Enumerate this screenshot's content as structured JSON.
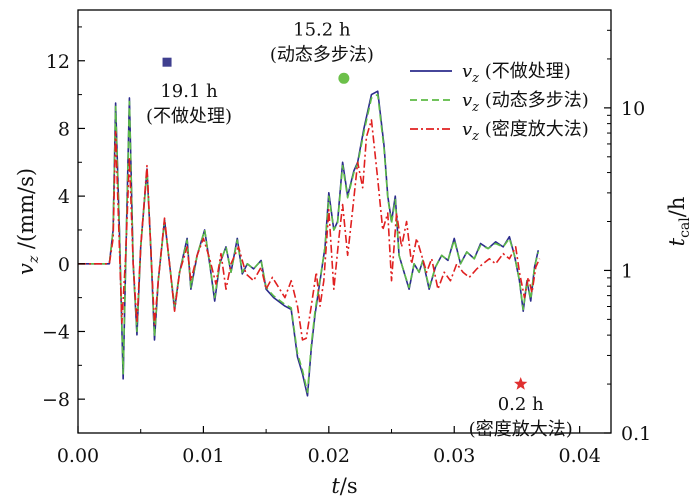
{
  "chart_data": {
    "type": "line",
    "x_axis": {
      "label": "t/s",
      "range": [
        0,
        0.0425
      ],
      "ticks": [
        0,
        0.01,
        0.02,
        0.03,
        0.04
      ],
      "tick_labels": [
        "0.00",
        "0.01",
        "0.02",
        "0.03",
        "0.04"
      ]
    },
    "y_axis_left": {
      "label": "vz /(mm/s)",
      "range": [
        -10,
        15
      ],
      "ticks": [
        -8,
        -4,
        0,
        4,
        8,
        12
      ],
      "tick_labels": [
        "−8",
        "−4",
        "0",
        "4",
        "8",
        "12"
      ]
    },
    "y_axis_right": {
      "label": "tcal/h",
      "scale": "log",
      "range": [
        0.1,
        40
      ],
      "ticks": [
        0.1,
        1,
        10
      ],
      "tick_labels": [
        "0.1",
        "1",
        "10"
      ]
    },
    "legend": {
      "placement": "top-right",
      "entries": [
        {
          "label": "vz (不做处理)",
          "color": "#2b2b8c",
          "style": "solid"
        },
        {
          "label": "vz (动态多步法)",
          "color": "#5dbb46",
          "style": "dashed"
        },
        {
          "label": "vz (密度放大法)",
          "color": "#e02020",
          "style": "dashdot"
        }
      ]
    },
    "series": [
      {
        "name": "vz (不做处理)",
        "color": "#2b2b8c",
        "points": [
          [
            0,
            0
          ],
          [
            0.0025,
            0
          ],
          [
            0.0028,
            2
          ],
          [
            0.003,
            9.5
          ],
          [
            0.0033,
            2
          ],
          [
            0.0036,
            -6.8
          ],
          [
            0.0038,
            0
          ],
          [
            0.0041,
            9.8
          ],
          [
            0.0044,
            0
          ],
          [
            0.0047,
            -4.2
          ],
          [
            0.005,
            1
          ],
          [
            0.0055,
            5.6
          ],
          [
            0.0058,
            1
          ],
          [
            0.0061,
            -4.5
          ],
          [
            0.0064,
            -1
          ],
          [
            0.0069,
            2.6
          ],
          [
            0.0073,
            0
          ],
          [
            0.0077,
            -2.7
          ],
          [
            0.0081,
            -0.5
          ],
          [
            0.0087,
            1.5
          ],
          [
            0.009,
            -1.5
          ],
          [
            0.0095,
            0.5
          ],
          [
            0.0101,
            2
          ],
          [
            0.0105,
            0
          ],
          [
            0.0109,
            -2.2
          ],
          [
            0.0113,
            0
          ],
          [
            0.0118,
            1
          ],
          [
            0.0122,
            -0.5
          ],
          [
            0.0127,
            1.5
          ],
          [
            0.0131,
            -0.6
          ],
          [
            0.0135,
            0
          ],
          [
            0.014,
            -0.3
          ],
          [
            0.0146,
            0.2
          ],
          [
            0.015,
            -1.5
          ],
          [
            0.0156,
            -2
          ],
          [
            0.0165,
            -2.5
          ],
          [
            0.017,
            -2.7
          ],
          [
            0.0175,
            -5.5
          ],
          [
            0.0179,
            -6.5
          ],
          [
            0.0183,
            -7.8
          ],
          [
            0.0186,
            -5
          ],
          [
            0.0189,
            -3
          ],
          [
            0.0192,
            -1.5
          ],
          [
            0.0197,
            1
          ],
          [
            0.02,
            4.2
          ],
          [
            0.0204,
            2
          ],
          [
            0.0207,
            2.5
          ],
          [
            0.0211,
            6
          ],
          [
            0.0215,
            4
          ],
          [
            0.022,
            5.5
          ],
          [
            0.0223,
            6
          ],
          [
            0.0228,
            8
          ],
          [
            0.0234,
            10
          ],
          [
            0.0239,
            10.2
          ],
          [
            0.0244,
            7
          ],
          [
            0.0247,
            4
          ],
          [
            0.025,
            2.5
          ],
          [
            0.0253,
            4
          ],
          [
            0.0256,
            0.5
          ],
          [
            0.026,
            -0.5
          ],
          [
            0.0264,
            -1.5
          ],
          [
            0.0268,
            0
          ],
          [
            0.0272,
            -0.5
          ],
          [
            0.0275,
            0.2
          ],
          [
            0.028,
            -1.5
          ],
          [
            0.0285,
            -0.2
          ],
          [
            0.029,
            0.5
          ],
          [
            0.0295,
            0.2
          ],
          [
            0.03,
            1.5
          ],
          [
            0.0305,
            0
          ],
          [
            0.031,
            0.7
          ],
          [
            0.0316,
            0.3
          ],
          [
            0.0321,
            1.2
          ],
          [
            0.0327,
            0.9
          ],
          [
            0.0333,
            1.3
          ],
          [
            0.0339,
            1
          ],
          [
            0.0344,
            1.6
          ],
          [
            0.0348,
            0.5
          ],
          [
            0.0352,
            -1
          ],
          [
            0.0355,
            -2.8
          ],
          [
            0.0358,
            -1
          ],
          [
            0.0361,
            -2.2
          ],
          [
            0.0364,
            -0.2
          ],
          [
            0.0367,
            0.8
          ]
        ]
      },
      {
        "name": "vz (动态多步法)",
        "color": "#5dbb46",
        "points": [
          [
            0,
            0
          ],
          [
            0.0025,
            0
          ],
          [
            0.0028,
            2
          ],
          [
            0.003,
            9.3
          ],
          [
            0.0033,
            2
          ],
          [
            0.0036,
            -6.5
          ],
          [
            0.0038,
            0
          ],
          [
            0.0041,
            9.6
          ],
          [
            0.0044,
            0
          ],
          [
            0.0047,
            -4
          ],
          [
            0.005,
            1
          ],
          [
            0.0055,
            5.5
          ],
          [
            0.0058,
            1
          ],
          [
            0.0061,
            -4.3
          ],
          [
            0.0064,
            -1
          ],
          [
            0.0069,
            2.5
          ],
          [
            0.0073,
            0
          ],
          [
            0.0077,
            -2.5
          ],
          [
            0.0081,
            -0.5
          ],
          [
            0.0087,
            1.4
          ],
          [
            0.009,
            -1.4
          ],
          [
            0.0095,
            0.5
          ],
          [
            0.0101,
            2
          ],
          [
            0.0105,
            0
          ],
          [
            0.0109,
            -2
          ],
          [
            0.0113,
            0
          ],
          [
            0.0118,
            1
          ],
          [
            0.0122,
            -0.5
          ],
          [
            0.0127,
            1.4
          ],
          [
            0.0131,
            -0.5
          ],
          [
            0.0135,
            0
          ],
          [
            0.014,
            -0.3
          ],
          [
            0.0146,
            0.2
          ],
          [
            0.015,
            -1.4
          ],
          [
            0.0156,
            -1.9
          ],
          [
            0.0165,
            -2.4
          ],
          [
            0.017,
            -2.6
          ],
          [
            0.0175,
            -5.3
          ],
          [
            0.0179,
            -6.3
          ],
          [
            0.0183,
            -7.6
          ],
          [
            0.0186,
            -4.8
          ],
          [
            0.0189,
            -2.8
          ],
          [
            0.0192,
            -1.4
          ],
          [
            0.0197,
            1
          ],
          [
            0.02,
            4
          ],
          [
            0.0204,
            2
          ],
          [
            0.0207,
            2.4
          ],
          [
            0.0211,
            5.8
          ],
          [
            0.0215,
            3.9
          ],
          [
            0.022,
            5.4
          ],
          [
            0.0223,
            5.9
          ],
          [
            0.0228,
            7.8
          ],
          [
            0.0234,
            9.8
          ],
          [
            0.0239,
            10
          ],
          [
            0.0244,
            6.8
          ],
          [
            0.0247,
            3.9
          ],
          [
            0.025,
            2.4
          ],
          [
            0.0253,
            3.8
          ],
          [
            0.0256,
            0.5
          ],
          [
            0.026,
            -0.5
          ],
          [
            0.0264,
            -1.4
          ],
          [
            0.0268,
            0
          ],
          [
            0.0272,
            -0.5
          ],
          [
            0.0275,
            0.2
          ],
          [
            0.028,
            -1.4
          ],
          [
            0.0285,
            -0.2
          ],
          [
            0.029,
            0.5
          ],
          [
            0.0295,
            0.2
          ],
          [
            0.03,
            1.4
          ],
          [
            0.0305,
            0
          ],
          [
            0.031,
            0.7
          ],
          [
            0.0316,
            0.3
          ],
          [
            0.0321,
            1.1
          ],
          [
            0.0327,
            0.9
          ],
          [
            0.0333,
            1.2
          ],
          [
            0.0339,
            1
          ],
          [
            0.0344,
            1.5
          ],
          [
            0.0348,
            0.5
          ],
          [
            0.0352,
            -1
          ],
          [
            0.0355,
            -2.7
          ],
          [
            0.0358,
            -1
          ],
          [
            0.0361,
            -2.1
          ],
          [
            0.0364,
            -0.2
          ],
          [
            0.0367,
            0.7
          ]
        ]
      },
      {
        "name": "vz (密度放大法)",
        "color": "#e02020",
        "points": [
          [
            0,
            0
          ],
          [
            0.0025,
            0
          ],
          [
            0.0028,
            1.5
          ],
          [
            0.003,
            7.8
          ],
          [
            0.0033,
            1
          ],
          [
            0.0035,
            -3.5
          ],
          [
            0.0038,
            0.5
          ],
          [
            0.0041,
            6.3
          ],
          [
            0.0044,
            0
          ],
          [
            0.0047,
            -3.5
          ],
          [
            0.005,
            1
          ],
          [
            0.0055,
            5.8
          ],
          [
            0.0058,
            1
          ],
          [
            0.0061,
            -3.6
          ],
          [
            0.0064,
            -1
          ],
          [
            0.0069,
            2.7
          ],
          [
            0.0073,
            0
          ],
          [
            0.0077,
            -2.8
          ],
          [
            0.0081,
            -0.5
          ],
          [
            0.0087,
            1
          ],
          [
            0.009,
            -1
          ],
          [
            0.0095,
            0.5
          ],
          [
            0.01,
            1.5
          ],
          [
            0.0105,
            0.3
          ],
          [
            0.011,
            -1.2
          ],
          [
            0.0114,
            0.6
          ],
          [
            0.0118,
            -1.5
          ],
          [
            0.0122,
            0
          ],
          [
            0.0128,
            1
          ],
          [
            0.0134,
            -0.6
          ],
          [
            0.014,
            -1
          ],
          [
            0.0146,
            -0.2
          ],
          [
            0.015,
            -1.5
          ],
          [
            0.0155,
            -0.8
          ],
          [
            0.016,
            -1.4
          ],
          [
            0.0165,
            -2
          ],
          [
            0.017,
            -1
          ],
          [
            0.0175,
            -2.5
          ],
          [
            0.0179,
            -4.5
          ],
          [
            0.0182,
            -4.4
          ],
          [
            0.0186,
            -2.5
          ],
          [
            0.019,
            -0.5
          ],
          [
            0.0193,
            -2.5
          ],
          [
            0.0196,
            -1
          ],
          [
            0.02,
            3.2
          ],
          [
            0.0204,
            -1.5
          ],
          [
            0.0208,
            1.5
          ],
          [
            0.0211,
            3.5
          ],
          [
            0.0215,
            0.5
          ],
          [
            0.0219,
            3.2
          ],
          [
            0.0223,
            6
          ],
          [
            0.0227,
            4.5
          ],
          [
            0.023,
            7.5
          ],
          [
            0.0234,
            8.5
          ],
          [
            0.0239,
            5
          ],
          [
            0.0243,
            2
          ],
          [
            0.0247,
            3
          ],
          [
            0.025,
            -1
          ],
          [
            0.0254,
            3
          ],
          [
            0.0258,
            1
          ],
          [
            0.0262,
            2.5
          ],
          [
            0.0266,
            0
          ],
          [
            0.027,
            1.5
          ],
          [
            0.0274,
            0.5
          ],
          [
            0.0278,
            -0.5
          ],
          [
            0.0282,
            0.3
          ],
          [
            0.0287,
            -1.5
          ],
          [
            0.0292,
            -0.5
          ],
          [
            0.0297,
            -1
          ],
          [
            0.0302,
            0
          ],
          [
            0.0307,
            -0.5
          ],
          [
            0.0312,
            -0.8
          ],
          [
            0.0318,
            -0.3
          ],
          [
            0.0323,
            0
          ],
          [
            0.0328,
            0.3
          ],
          [
            0.0333,
            0
          ],
          [
            0.0339,
            0.6
          ],
          [
            0.0344,
            0.3
          ],
          [
            0.0349,
            1
          ],
          [
            0.0352,
            -0.5
          ],
          [
            0.0356,
            -2
          ],
          [
            0.0359,
            -0.8
          ],
          [
            0.0362,
            -1.7
          ],
          [
            0.0365,
            -0.2
          ],
          [
            0.0368,
            0.3
          ]
        ]
      }
    ],
    "markers": [
      {
        "label": "19.1 h",
        "label2": "(不做处理)",
        "x": 0.0071,
        "t_value": 19.1,
        "shape": "square",
        "color": "#3f3f8f"
      },
      {
        "label": "15.2 h",
        "label2": "(动态多步法)",
        "x": 0.0212,
        "t_value": 15.2,
        "shape": "circle",
        "color": "#6cc04a"
      },
      {
        "label": "0.2 h",
        "label2": "(密度放大法)",
        "x": 0.0353,
        "t_value": 0.2,
        "shape": "star",
        "color": "#e03030"
      }
    ]
  }
}
